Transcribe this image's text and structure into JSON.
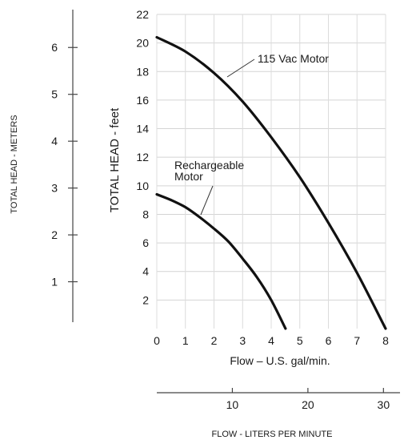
{
  "chart_data": {
    "type": "line",
    "xlabel": "Flow – U.S. gal/min.",
    "ylabel": "TOTAL HEAD - feet",
    "xlim": [
      0,
      8
    ],
    "ylim": [
      0,
      22
    ],
    "xticks": [
      0,
      1,
      2,
      3,
      4,
      5,
      6,
      7,
      8
    ],
    "yticks": [
      2,
      4,
      6,
      8,
      10,
      12,
      14,
      16,
      18,
      20,
      22
    ],
    "grid": true,
    "series": [
      {
        "name": "115 Vac Motor",
        "x": [
          0,
          1,
          2,
          3,
          4,
          5,
          6,
          7,
          8
        ],
        "y": [
          20.4,
          19.4,
          17.9,
          15.9,
          13.4,
          10.6,
          7.4,
          3.9,
          0
        ]
      },
      {
        "name": "Rechargeable Motor",
        "x": [
          0,
          0.5,
          1,
          1.5,
          2,
          2.5,
          3,
          3.5,
          4,
          4.5
        ],
        "y": [
          9.4,
          9.0,
          8.5,
          7.8,
          7.0,
          6.1,
          4.9,
          3.6,
          2.0,
          0
        ]
      }
    ],
    "annotations": [
      {
        "text": "115 Vac Motor"
      },
      {
        "text": "Rechargeable\nMotor"
      }
    ],
    "secondary_y_axis": {
      "label": "TOTAL HEAD - METERS",
      "ticks": [
        1,
        2,
        3,
        4,
        5,
        6
      ]
    },
    "secondary_x_axis": {
      "label": "FLOW - LITERS PER MINUTE",
      "ticks": [
        10,
        20,
        30
      ]
    }
  }
}
